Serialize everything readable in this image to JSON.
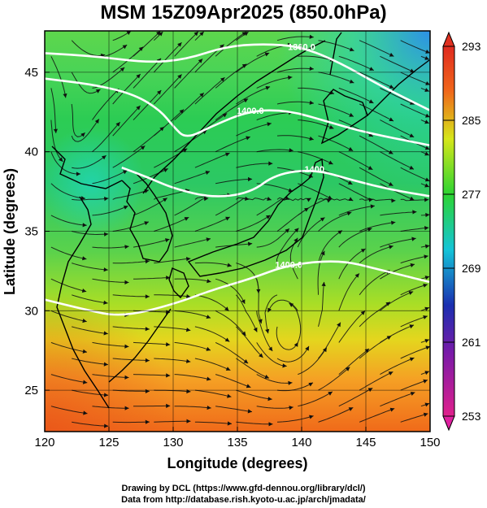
{
  "header": {
    "title": "MSM 15Z09Apr2025 (850.0hPa)"
  },
  "axes": {
    "xlabel": "Longitude (degrees)",
    "ylabel": "Latitude  (degrees)",
    "x_ticks": [
      "120",
      "125",
      "130",
      "135",
      "140",
      "145",
      "150"
    ],
    "y_ticks": [
      "25",
      "30",
      "35",
      "40",
      "45"
    ]
  },
  "colorbar": {
    "labels": [
      "293",
      "285",
      "277",
      "269",
      "261",
      "253"
    ],
    "stops": [
      "#e0208c",
      "#1a2fb0",
      "#14c4d8",
      "#2cd432",
      "#d6e61a",
      "#f0661a",
      "#e02a20"
    ]
  },
  "contours": {
    "labels": [
      "1360.0",
      "1400.0",
      "1400",
      "1400.0"
    ]
  },
  "footer": {
    "line1": "Drawing by DCL (https://www.gfd-dennou.org/library/dcl/)",
    "line2": "Data from http://database.rish.kyoto-u.ac.jp/arch/jmadata/"
  },
  "chart_data": {
    "type": "heatmap",
    "title": "MSM 15Z09Apr2025 (850.0hPa)",
    "xlabel": "Longitude (degrees)",
    "ylabel": "Latitude  (degrees)",
    "xlim": [
      120,
      150
    ],
    "ylim": [
      22.4,
      47.6
    ],
    "colorbar_range": [
      253,
      293
    ],
    "colorbar_ticks": [
      293,
      285,
      277,
      269,
      261,
      253
    ],
    "contour_lines": [
      {
        "label": "1360.0",
        "points": [
          [
            120,
            46.2
          ],
          [
            124,
            46.0
          ],
          [
            128,
            45.6
          ],
          [
            131,
            45.8
          ],
          [
            134,
            46.6
          ],
          [
            137,
            46.8
          ],
          [
            140,
            46.6
          ],
          [
            143,
            45.6
          ],
          [
            146,
            44.2
          ],
          [
            150,
            42.6
          ]
        ]
      },
      {
        "label": "1400.0",
        "points": [
          [
            120,
            44.6
          ],
          [
            124,
            44.2
          ],
          [
            127,
            43.6
          ],
          [
            129,
            42.6
          ],
          [
            130,
            41.6
          ],
          [
            131,
            40.8
          ],
          [
            133,
            41.6
          ],
          [
            136,
            42.6
          ],
          [
            139,
            42.6
          ],
          [
            142,
            41.9
          ],
          [
            145,
            41.2
          ],
          [
            150,
            40.4
          ]
        ]
      },
      {
        "label": "1400",
        "points": [
          [
            126,
            39.0
          ],
          [
            128,
            38.4
          ],
          [
            130,
            37.7
          ],
          [
            133,
            37.1
          ],
          [
            136,
            37.4
          ],
          [
            138,
            38.6
          ],
          [
            141,
            38.9
          ],
          [
            144,
            38.2
          ],
          [
            147,
            37.6
          ],
          [
            150,
            37.2
          ]
        ]
      },
      {
        "label": "1400.0",
        "points": [
          [
            120,
            30.7
          ],
          [
            123,
            30.1
          ],
          [
            126,
            29.6
          ],
          [
            130,
            30.4
          ],
          [
            133,
            31.3
          ],
          [
            136,
            32.0
          ],
          [
            139,
            32.9
          ],
          [
            143,
            33.2
          ],
          [
            146,
            32.6
          ],
          [
            150,
            31.8
          ]
        ]
      }
    ]
  }
}
